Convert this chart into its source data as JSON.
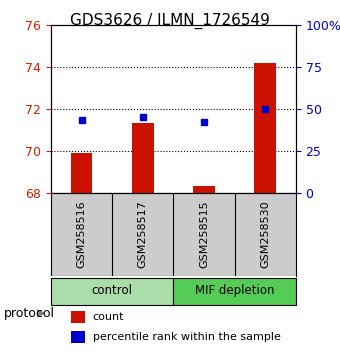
{
  "title": "GDS3626 / ILMN_1726549",
  "samples": [
    "GSM258516",
    "GSM258517",
    "GSM258515",
    "GSM258530"
  ],
  "counts": [
    69.9,
    71.3,
    68.3,
    74.2
  ],
  "percentile_ranks": [
    43,
    45,
    42,
    50
  ],
  "ylim_left": [
    68,
    76
  ],
  "ylim_right": [
    0,
    100
  ],
  "yticks_left": [
    68,
    70,
    72,
    74,
    76
  ],
  "yticks_right": [
    0,
    25,
    50,
    75,
    100
  ],
  "ytick_labels_right": [
    "0",
    "25",
    "50",
    "75",
    "100%"
  ],
  "bar_color": "#cc1100",
  "dot_color": "#0000cc",
  "groups": [
    {
      "label": "control",
      "samples": [
        "GSM258516",
        "GSM258517"
      ],
      "color": "#aaddaa"
    },
    {
      "label": "MIF depletion",
      "samples": [
        "GSM258515",
        "GSM258530"
      ],
      "color": "#55cc55"
    }
  ],
  "legend_bar_label": "count",
  "legend_dot_label": "percentile rank within the sample",
  "protocol_label": "protocol",
  "bg_plot": "#ffffff",
  "bg_samples": "#cccccc",
  "grid_color": "#000000",
  "left_tick_color": "#cc2200",
  "right_tick_color": "#0000cc"
}
